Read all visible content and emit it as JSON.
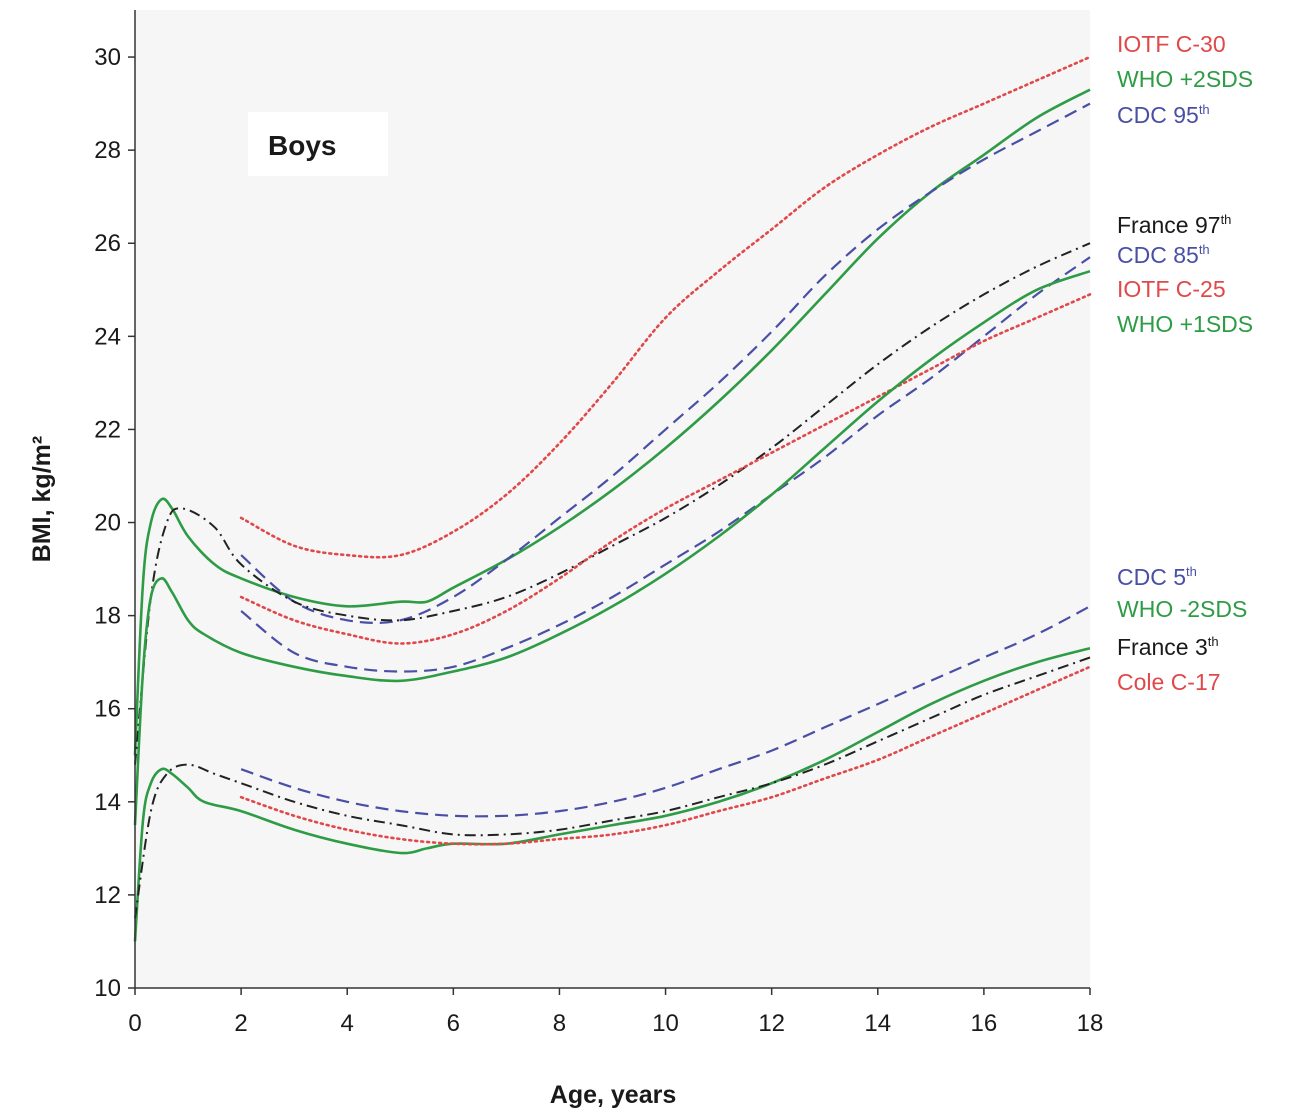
{
  "chart_data": {
    "type": "line",
    "panel_label": "Boys",
    "xlabel": "Age, years",
    "ylabel": "BMI, kg/m²",
    "xlim": [
      0,
      18
    ],
    "ylim": [
      10,
      31
    ],
    "xticks": [
      0,
      2,
      4,
      6,
      8,
      10,
      12,
      14,
      16,
      18
    ],
    "yticks": [
      10,
      12,
      14,
      16,
      18,
      20,
      22,
      24,
      26,
      28,
      30
    ],
    "grid": false,
    "legend_placement": "right, labels beside line ends",
    "colors": {
      "who": "#2e9b45",
      "cdc": "#4a4fa6",
      "iotf": "#e0484a",
      "france": "#222222"
    },
    "series": [
      {
        "name": "IOTF C-30",
        "color": "#e0484a",
        "style": "dotted",
        "x": [
          2,
          3,
          4,
          5,
          6,
          7,
          8,
          9,
          10,
          11,
          12,
          13,
          14,
          15,
          16,
          17,
          18
        ],
        "y": [
          20.1,
          19.5,
          19.3,
          19.3,
          19.8,
          20.6,
          21.7,
          23.0,
          24.4,
          25.4,
          26.3,
          27.2,
          27.9,
          28.5,
          29.0,
          29.5,
          30.0
        ]
      },
      {
        "name": "WHO +2SDS",
        "color": "#2e9b45",
        "style": "solid",
        "x": [
          0,
          0.15,
          0.3,
          0.5,
          0.7,
          1,
          1.5,
          2,
          3,
          4,
          5,
          5.5,
          6,
          7,
          8,
          9,
          10,
          11,
          12,
          13,
          14,
          15,
          16,
          17,
          18
        ],
        "y": [
          15.0,
          18.7,
          20.0,
          20.5,
          20.3,
          19.7,
          19.1,
          18.8,
          18.4,
          18.2,
          18.3,
          18.3,
          18.6,
          19.2,
          19.9,
          20.7,
          21.6,
          22.6,
          23.7,
          24.9,
          26.1,
          27.1,
          27.9,
          28.7,
          29.3
        ]
      },
      {
        "name": "CDC 95th",
        "color": "#4a4fa6",
        "style": "dashed",
        "x": [
          2,
          3,
          4,
          5,
          6,
          7,
          8,
          9,
          10,
          11,
          12,
          13,
          14,
          15,
          16,
          17,
          18
        ],
        "y": [
          19.3,
          18.3,
          17.9,
          17.9,
          18.4,
          19.2,
          20.1,
          21.0,
          22.0,
          23.0,
          24.1,
          25.3,
          26.3,
          27.1,
          27.8,
          28.4,
          29.0
        ]
      },
      {
        "name": "France 97th",
        "color": "#222222",
        "style": "dash-dot",
        "x": [
          0,
          0.3,
          0.6,
          0.9,
          1.5,
          2,
          3,
          4,
          5,
          6,
          7,
          8,
          9,
          10,
          11,
          12,
          13,
          14,
          15,
          16,
          17,
          18
        ],
        "y": [
          14.8,
          18.4,
          20.0,
          20.3,
          19.9,
          19.1,
          18.3,
          18.0,
          17.9,
          18.1,
          18.4,
          18.9,
          19.5,
          20.1,
          20.8,
          21.6,
          22.5,
          23.4,
          24.2,
          24.9,
          25.5,
          26.0
        ]
      },
      {
        "name": "CDC 85th",
        "color": "#4a4fa6",
        "style": "dashed",
        "x": [
          2,
          3,
          4,
          5,
          6,
          7,
          8,
          9,
          10,
          11,
          12,
          13,
          14,
          15,
          16,
          17,
          18
        ],
        "y": [
          18.1,
          17.2,
          16.9,
          16.8,
          16.9,
          17.3,
          17.8,
          18.4,
          19.1,
          19.8,
          20.6,
          21.4,
          22.3,
          23.1,
          24.0,
          24.9,
          25.7
        ]
      },
      {
        "name": "IOTF C-25",
        "color": "#e0484a",
        "style": "dotted",
        "x": [
          2,
          3,
          4,
          5,
          6,
          7,
          8,
          9,
          10,
          11,
          12,
          13,
          14,
          15,
          16,
          17,
          18
        ],
        "y": [
          18.4,
          17.9,
          17.6,
          17.4,
          17.6,
          18.1,
          18.8,
          19.6,
          20.3,
          20.9,
          21.5,
          22.1,
          22.7,
          23.3,
          23.9,
          24.4,
          24.9
        ]
      },
      {
        "name": "WHO +1SDS",
        "color": "#2e9b45",
        "style": "solid",
        "x": [
          0,
          0.15,
          0.3,
          0.5,
          0.7,
          1,
          1.3,
          2,
          3,
          4,
          5,
          6,
          7,
          8,
          9,
          10,
          11,
          12,
          13,
          14,
          15,
          16,
          17,
          18
        ],
        "y": [
          13.5,
          16.8,
          18.4,
          18.8,
          18.5,
          17.9,
          17.6,
          17.2,
          16.9,
          16.7,
          16.6,
          16.8,
          17.1,
          17.6,
          18.2,
          18.9,
          19.7,
          20.6,
          21.6,
          22.6,
          23.5,
          24.3,
          25.0,
          25.4
        ]
      },
      {
        "name": "CDC 5th",
        "color": "#4a4fa6",
        "style": "dashed",
        "x": [
          2,
          3,
          4,
          5,
          6,
          7,
          8,
          9,
          10,
          11,
          12,
          13,
          14,
          15,
          16,
          17,
          18
        ],
        "y": [
          14.7,
          14.3,
          14.0,
          13.8,
          13.7,
          13.7,
          13.8,
          14.0,
          14.3,
          14.7,
          15.1,
          15.6,
          16.1,
          16.6,
          17.1,
          17.6,
          18.2
        ]
      },
      {
        "name": "WHO -2SDS",
        "color": "#2e9b45",
        "style": "solid",
        "x": [
          0,
          0.15,
          0.3,
          0.5,
          0.7,
          1,
          1.3,
          2,
          3,
          4,
          5,
          5.5,
          6,
          7,
          8,
          9,
          10,
          11,
          12,
          13,
          14,
          15,
          16,
          17,
          18
        ],
        "y": [
          11.0,
          13.6,
          14.4,
          14.7,
          14.6,
          14.3,
          14.0,
          13.8,
          13.4,
          13.1,
          12.9,
          13.0,
          13.1,
          13.1,
          13.3,
          13.5,
          13.7,
          14.0,
          14.4,
          14.9,
          15.5,
          16.1,
          16.6,
          17.0,
          17.3
        ]
      },
      {
        "name": "France 3th",
        "color": "#222222",
        "style": "dash-dot",
        "x": [
          0,
          0.3,
          0.6,
          1,
          1.5,
          2,
          3,
          4,
          5,
          6,
          7,
          8,
          9,
          10,
          11,
          12,
          13,
          14,
          15,
          16,
          17,
          18
        ],
        "y": [
          11.5,
          13.8,
          14.6,
          14.8,
          14.6,
          14.4,
          14.0,
          13.7,
          13.5,
          13.3,
          13.3,
          13.4,
          13.6,
          13.8,
          14.1,
          14.4,
          14.8,
          15.3,
          15.8,
          16.3,
          16.7,
          17.1
        ]
      },
      {
        "name": "Cole C-17",
        "color": "#e0484a",
        "style": "dotted",
        "x": [
          2,
          3,
          4,
          5,
          6,
          7,
          8,
          9,
          10,
          11,
          12,
          13,
          14,
          15,
          16,
          17,
          18
        ],
        "y": [
          14.1,
          13.7,
          13.4,
          13.2,
          13.1,
          13.1,
          13.2,
          13.3,
          13.5,
          13.8,
          14.1,
          14.5,
          14.9,
          15.4,
          15.9,
          16.4,
          16.9
        ]
      }
    ],
    "legend": [
      {
        "text": "IOTF C-30",
        "sup": "",
        "color": "#e0484a"
      },
      {
        "text": "WHO +2SDS",
        "sup": "",
        "color": "#2e9b45"
      },
      {
        "text": "CDC 95",
        "sup": "th",
        "color": "#4a4fa6"
      },
      {
        "text": "France 97",
        "sup": "th",
        "color": "#1a1a1a"
      },
      {
        "text": "CDC 85",
        "sup": "th",
        "color": "#4a4fa6"
      },
      {
        "text": "IOTF C-25",
        "sup": "",
        "color": "#e0484a"
      },
      {
        "text": "WHO +1SDS",
        "sup": "",
        "color": "#2e9b45"
      },
      {
        "text": "CDC 5",
        "sup": "th",
        "color": "#4a4fa6"
      },
      {
        "text": "WHO -2SDS",
        "sup": "",
        "color": "#2e9b45"
      },
      {
        "text": "France 3",
        "sup": "th",
        "color": "#1a1a1a"
      },
      {
        "text": "Cole C-17",
        "sup": "",
        "color": "#e0484a"
      }
    ]
  }
}
